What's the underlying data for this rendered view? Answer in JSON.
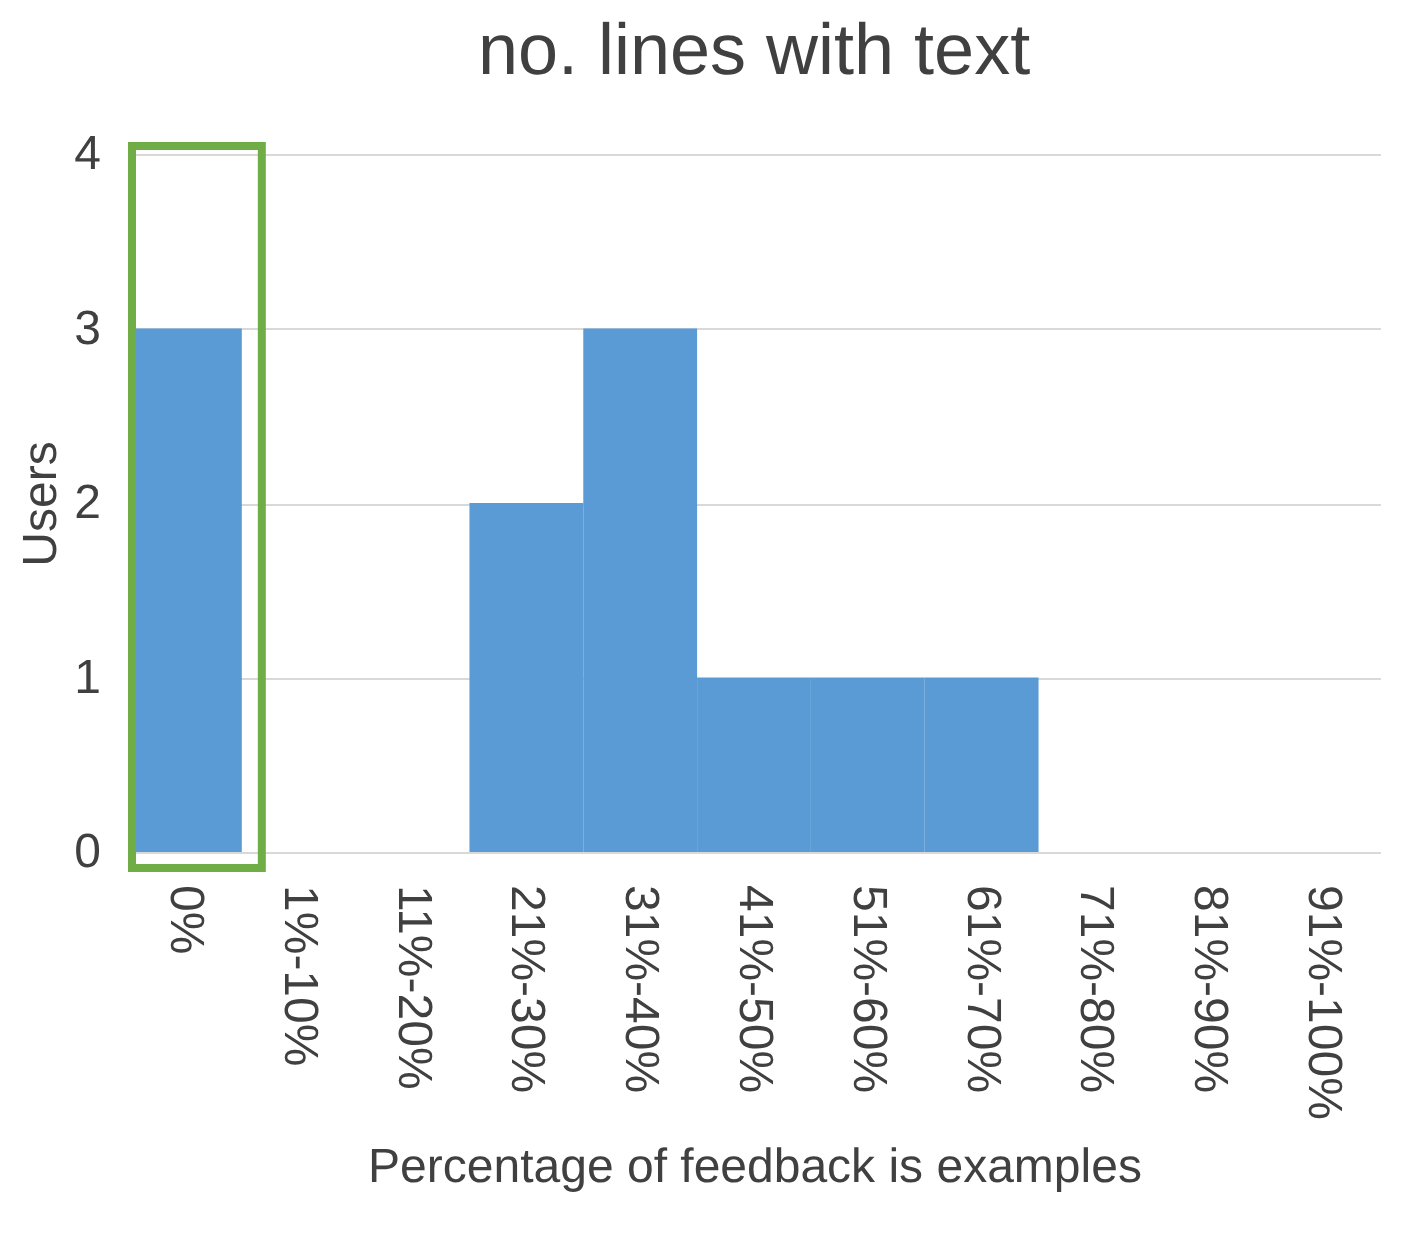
{
  "chart_data": {
    "type": "bar",
    "title": "no. lines with text",
    "xlabel": "Percentage of feedback is examples",
    "ylabel": "Users",
    "categories": [
      "0%",
      "1%-10%",
      "11%-20%",
      "21%-30%",
      "31%-40%",
      "41%-50%",
      "51%-60%",
      "61%-70%",
      "71%-80%",
      "81%-90%",
      "91%-100%"
    ],
    "values": [
      3,
      0,
      0,
      2,
      3,
      1,
      1,
      1,
      0,
      0,
      0
    ],
    "color": "#5b9bd5",
    "ylim": [
      0,
      4
    ],
    "yticks": [
      0,
      1,
      2,
      3,
      4
    ],
    "grid": "y"
  }
}
